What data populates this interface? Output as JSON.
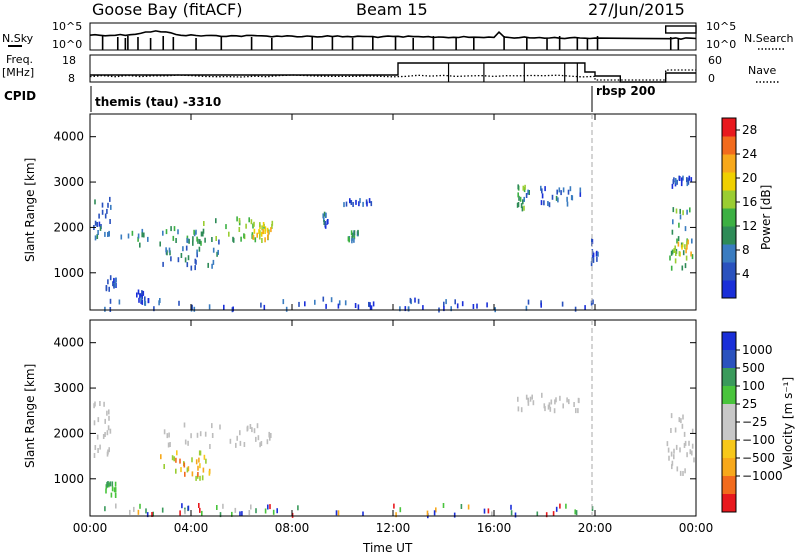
{
  "header": {
    "title": "Goose Bay (fitACF)",
    "beam": "Beam 15",
    "date": "27/Jun/2015"
  },
  "noise_panel": {
    "left_label": "N.Sky",
    "right_label": "N.Search",
    "left_ticks": [
      "10^5",
      "10^0"
    ],
    "right_ticks": [
      "10^5",
      "10^0"
    ]
  },
  "freq_panel": {
    "left_label_1": "Freq.",
    "left_label_2": "[MHz]",
    "right_label": "Nave",
    "left_ticks": [
      "18",
      "8"
    ],
    "right_ticks": [
      "60",
      "0"
    ]
  },
  "cpid": {
    "label": "CPID",
    "modes": [
      "themis (tau) -3310",
      "rbsp 200"
    ]
  },
  "colors": {
    "scale_blue": "#1a2fd8",
    "scale_red": "#e8191e",
    "ground_scatter": "#bdbdbd"
  },
  "chart_data": [
    {
      "type": "heatmap",
      "name": "power",
      "xlabel": "",
      "ylabel": "Slant Range [km]",
      "x_ticks": [
        "00:00",
        "04:00",
        "08:00",
        "12:00",
        "16:00",
        "20:00",
        "00:00"
      ],
      "y_ticks": [
        1000,
        2000,
        3000,
        4000
      ],
      "xlim_hours": [
        0,
        24
      ],
      "ylim_km": [
        180,
        4500
      ],
      "colorbar": {
        "label": "Power [dB]",
        "ticks": [
          4,
          8,
          12,
          16,
          20,
          24,
          28
        ],
        "range": [
          0,
          30
        ],
        "colors": [
          "#1a2fd8",
          "#2a52be",
          "#3a7cc0",
          "#2e8b57",
          "#3cb043",
          "#9acd32",
          "#f0d000",
          "#f7a81b",
          "#f26b1d",
          "#e8191e"
        ]
      },
      "regions": [
        {
          "hours": [
            0.1,
            0.8
          ],
          "km": [
            1500,
            2700
          ],
          "level": 6
        },
        {
          "hours": [
            0.6,
            1.0
          ],
          "km": [
            600,
            900
          ],
          "level": 4
        },
        {
          "hours": [
            1.8,
            2.2
          ],
          "km": [
            300,
            600
          ],
          "level": 3
        },
        {
          "hours": [
            2.7,
            5.1
          ],
          "km": [
            1100,
            1700
          ],
          "level": 7
        },
        {
          "hours": [
            1.2,
            4.5
          ],
          "km": [
            1600,
            2000
          ],
          "level": 10
        },
        {
          "hours": [
            4.0,
            7.2
          ],
          "km": [
            1700,
            2200
          ],
          "level": 14
        },
        {
          "hours": [
            6.4,
            7.2
          ],
          "km": [
            1700,
            2100
          ],
          "level": 20
        },
        {
          "hours": [
            9.2,
            9.4
          ],
          "km": [
            2000,
            2300
          ],
          "level": 6
        },
        {
          "hours": [
            10.2,
            10.6
          ],
          "km": [
            1700,
            1900
          ],
          "level": 10
        },
        {
          "hours": [
            10.0,
            11.2
          ],
          "km": [
            2500,
            2600
          ],
          "level": 4
        },
        {
          "hours": [
            16.9,
            17.2
          ],
          "km": [
            2400,
            2900
          ],
          "level": 12
        },
        {
          "hours": [
            17.0,
            19.4
          ],
          "km": [
            2500,
            2900
          ],
          "level": 6
        },
        {
          "hours": [
            19.8,
            20.1
          ],
          "km": [
            1200,
            1800
          ],
          "level": 5
        },
        {
          "hours": [
            22.9,
            23.9
          ],
          "km": [
            1100,
            2400
          ],
          "level": 12
        },
        {
          "hours": [
            23.0,
            23.9
          ],
          "km": [
            1400,
            1700
          ],
          "level": 20
        },
        {
          "hours": [
            23.0,
            23.8
          ],
          "km": [
            2900,
            3100
          ],
          "level": 4
        },
        {
          "hours": [
            0.5,
            20.0
          ],
          "km": [
            180,
            420
          ],
          "level": 4
        }
      ]
    },
    {
      "type": "heatmap",
      "name": "velocity",
      "xlabel": "Time UT",
      "ylabel": "Slant Range [km]",
      "x_ticks": [
        "00:00",
        "04:00",
        "08:00",
        "12:00",
        "16:00",
        "20:00",
        "00:00"
      ],
      "y_ticks": [
        1000,
        2000,
        3000,
        4000
      ],
      "xlim_hours": [
        0,
        24
      ],
      "ylim_km": [
        180,
        4500
      ],
      "colorbar": {
        "label": "Velocity [m s⁻¹]",
        "ticks": [
          "1000",
          "500",
          "100",
          "25",
          "−25",
          "−100",
          "−500",
          "−1000"
        ],
        "colors": [
          "#1a2fd8",
          "#2a52be",
          "#3a9a5b",
          "#49c43c",
          "#c8c8c8",
          "#c8c8c8",
          "#f7c81b",
          "#f7a81b",
          "#f26b1d",
          "#e8191e"
        ]
      },
      "regions": [
        {
          "hours": [
            0.1,
            0.8
          ],
          "km": [
            1500,
            2700
          ],
          "class": "ground"
        },
        {
          "hours": [
            2.5,
            7.2
          ],
          "km": [
            1700,
            2200
          ],
          "class": "ground"
        },
        {
          "hours": [
            2.7,
            5.0
          ],
          "km": [
            1000,
            1600
          ],
          "class": "negative"
        },
        {
          "hours": [
            0.6,
            1.0
          ],
          "km": [
            600,
            900
          ],
          "class": "positive"
        },
        {
          "hours": [
            16.9,
            19.4
          ],
          "km": [
            2500,
            2900
          ],
          "class": "ground"
        },
        {
          "hours": [
            22.8,
            23.9
          ],
          "km": [
            1100,
            2400
          ],
          "class": "ground"
        },
        {
          "hours": [
            0.5,
            20.0
          ],
          "km": [
            180,
            420
          ],
          "class": "mixed"
        }
      ]
    }
  ]
}
